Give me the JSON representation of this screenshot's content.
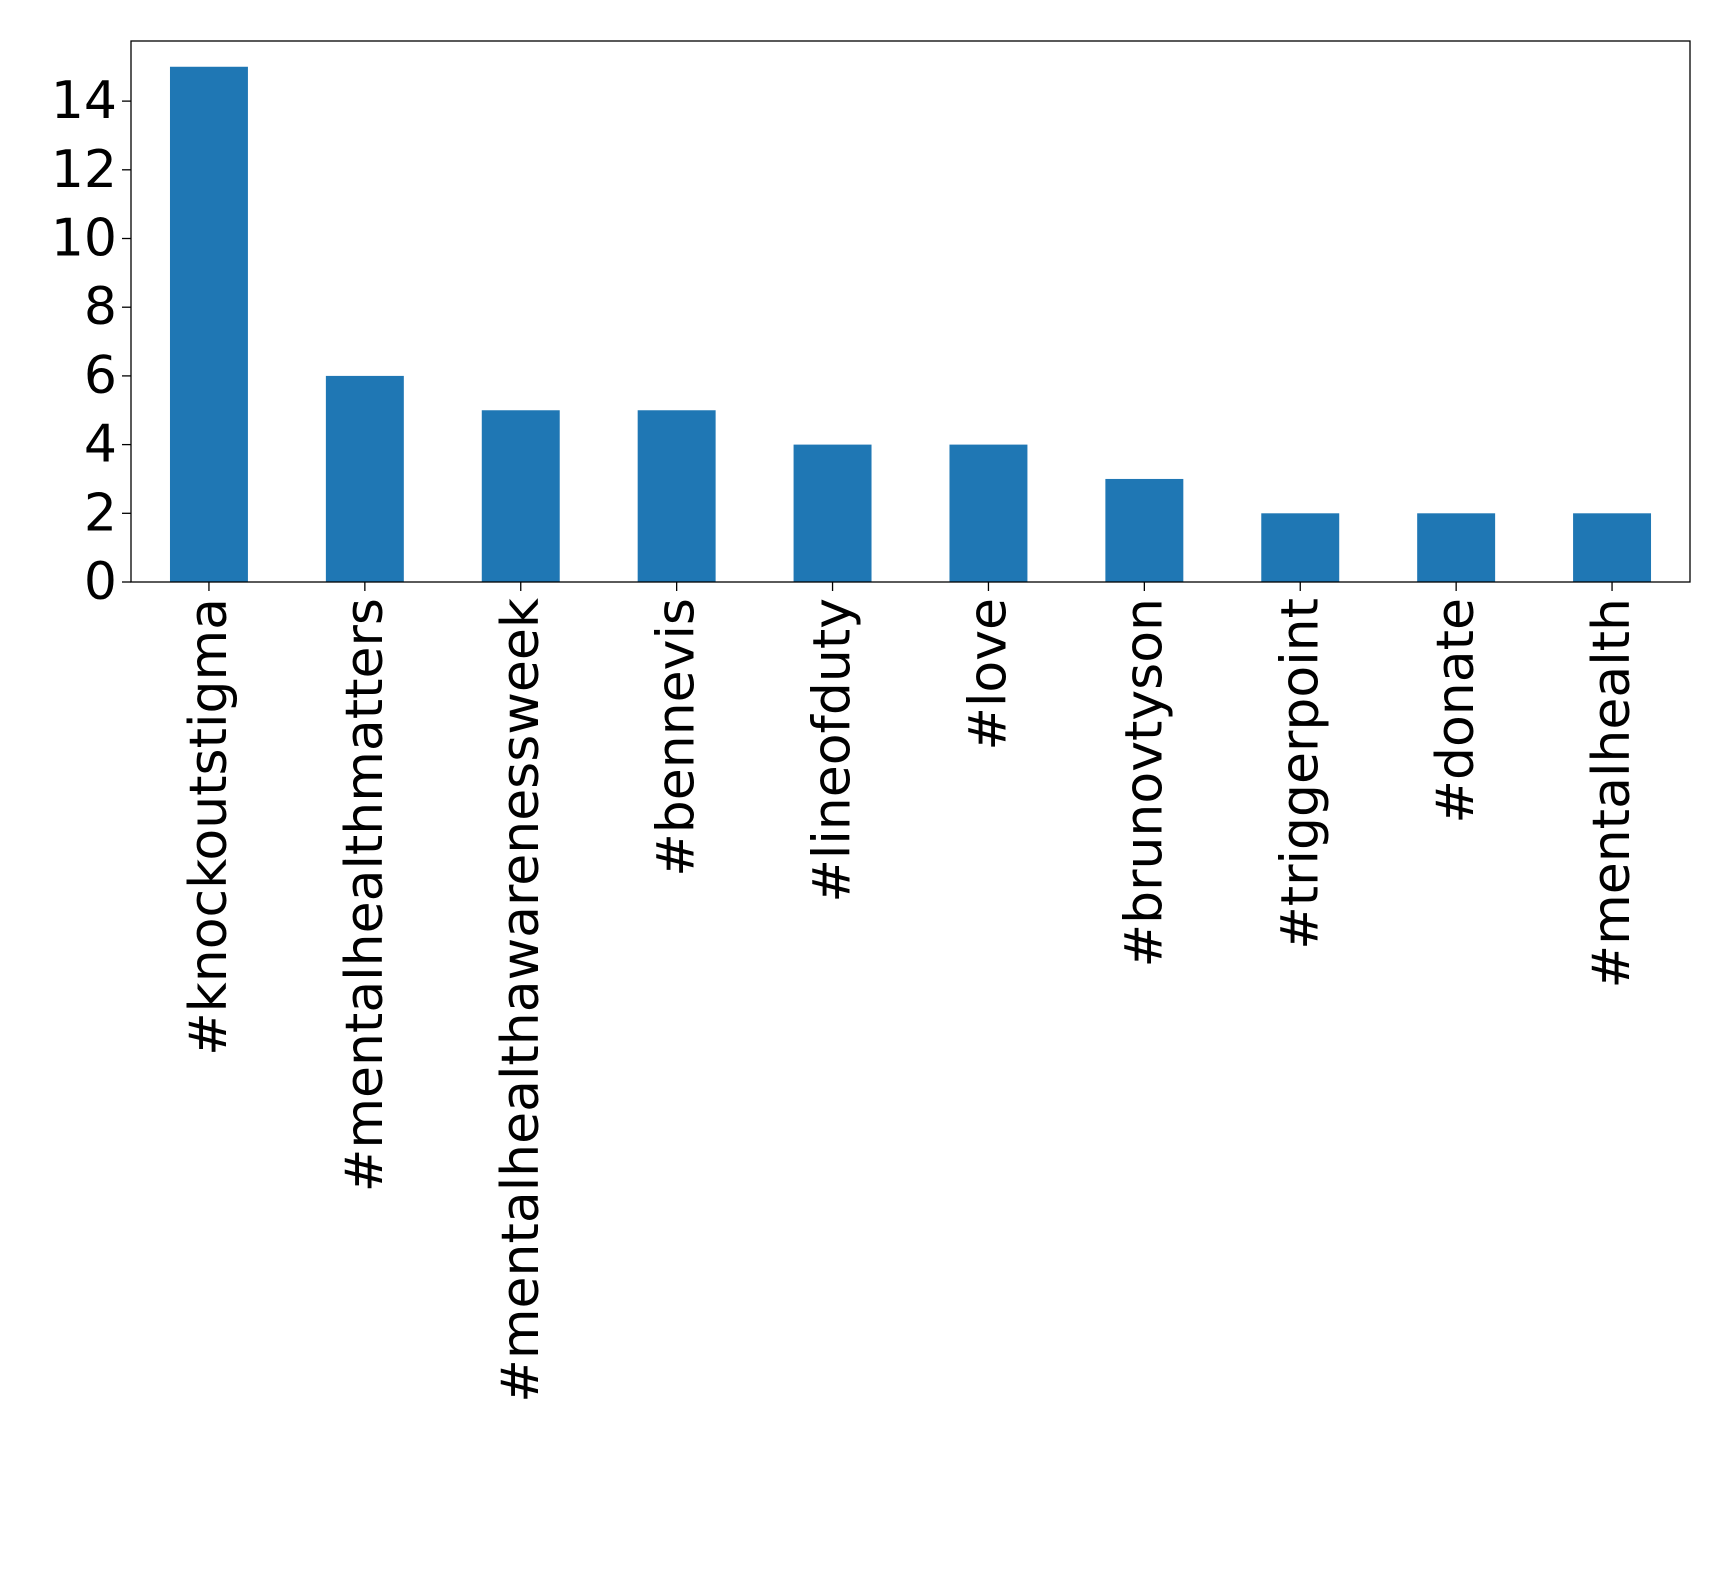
{
  "chart_data": {
    "type": "bar",
    "title": "",
    "xlabel": "",
    "ylabel": "",
    "categories": [
      "#knockoutstigma",
      "#mentalhealthmatters",
      "#mentalhealthawarenessweek",
      "#bennevis",
      "#lineofduty",
      "#love",
      "#brunovtyson",
      "#triggerpoint",
      "#donate",
      "#mentalhealth"
    ],
    "values": [
      15,
      6,
      5,
      5,
      4,
      4,
      3,
      2,
      2,
      2
    ],
    "ylim": [
      0,
      15.75
    ],
    "yticks": [
      0,
      2,
      4,
      6,
      8,
      10,
      12,
      14
    ],
    "grid": false,
    "legend": false,
    "bar_color": "#1f77b4"
  }
}
